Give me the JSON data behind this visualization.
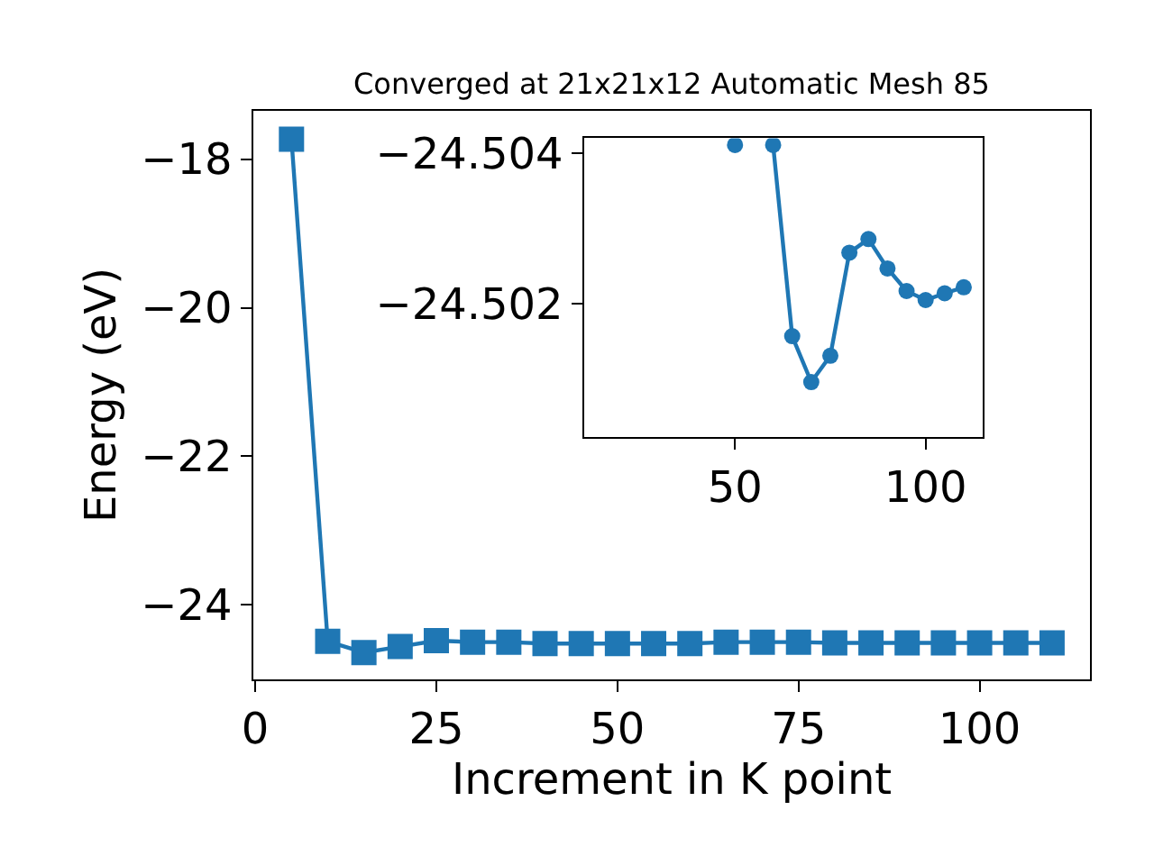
{
  "chart_data": [
    {
      "type": "line",
      "title": "Converged at 21x21x12 Automatic Mesh 85",
      "xlabel": "Increment in K point",
      "ylabel": "Energy (eV)",
      "marker": "square",
      "line_style": "solid",
      "x": [
        5,
        10,
        15,
        20,
        25,
        30,
        35,
        40,
        45,
        50,
        55,
        60,
        65,
        70,
        75,
        80,
        85,
        90,
        95,
        100,
        105,
        110
      ],
      "series": [
        {
          "color": "#1f77b4",
          "values": [
            -17.73,
            -24.49,
            -24.64,
            -24.56,
            -24.48,
            -24.5,
            -24.5,
            -24.52,
            -24.52,
            -24.52,
            -24.52,
            -24.52,
            -24.5,
            -24.5,
            -24.5,
            -24.51,
            -24.51,
            -24.51,
            -24.51,
            -24.51,
            -24.51,
            -24.51
          ]
        }
      ],
      "xlim": [
        -0.25,
        115.25
      ],
      "ylim": [
        -25.0,
        -17.35
      ],
      "xticks": [
        0,
        25,
        50,
        75,
        100
      ],
      "yticks": [
        {
          "value": -18,
          "label": "−18"
        },
        {
          "value": -20,
          "label": "−20"
        },
        {
          "value": -22,
          "label": "−22"
        },
        {
          "value": -24,
          "label": "−24"
        }
      ]
    },
    {
      "type": "line",
      "marker": "circle",
      "line_style": "solid",
      "x": [
        50,
        55,
        60,
        65,
        70,
        75,
        80,
        85,
        90,
        95,
        100,
        105,
        110
      ],
      "series": [
        {
          "color": "#1f77b4",
          "values": [
            -24.50411,
            null,
            -24.50411,
            -24.50157,
            -24.50096,
            -24.50131,
            -24.50268,
            -24.50286,
            -24.50247,
            -24.50217,
            -24.50205,
            -24.50214,
            -24.50222
          ]
        }
      ],
      "xlim": [
        10.5,
        115
      ],
      "ylim": [
        -24.50023,
        -24.5042
      ],
      "xticks": [
        50,
        100
      ],
      "yticks": [
        {
          "value": -24.504,
          "label": "−24.504"
        },
        {
          "value": -24.502,
          "label": "−24.502"
        }
      ]
    }
  ]
}
